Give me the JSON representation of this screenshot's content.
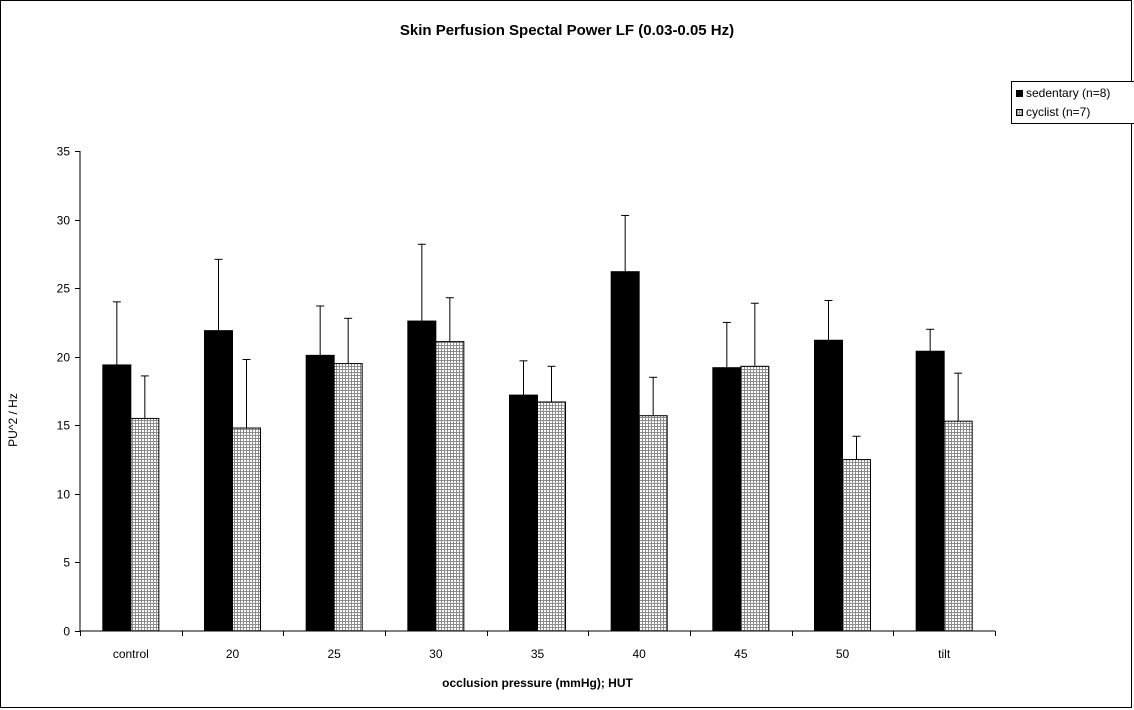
{
  "chart_data": {
    "type": "bar",
    "title": "Skin Perfusion Spectal Power LF (0.03-0.05 Hz)",
    "xlabel": "occlusion pressure (mmHg); HUT",
    "ylabel": "PU^2 / Hz",
    "ylim": [
      0,
      35
    ],
    "yticks": [
      "0",
      "5",
      "10",
      "15",
      "20",
      "25",
      "30",
      "35"
    ],
    "categories": [
      "control",
      "20",
      "25",
      "30",
      "35",
      "40",
      "45",
      "50",
      "tilt"
    ],
    "series": [
      {
        "name": "sedentary (n=8)",
        "color": "#000000",
        "fill": "solid",
        "values": [
          19.4,
          21.9,
          20.1,
          22.6,
          17.2,
          26.2,
          19.2,
          21.2,
          20.4
        ],
        "errors": [
          4.6,
          5.2,
          3.6,
          5.6,
          2.5,
          4.1,
          3.3,
          2.9,
          1.6
        ]
      },
      {
        "name": "cyclist (n=7)",
        "color": "#ffffff",
        "fill": "grid-pattern",
        "values": [
          15.5,
          14.8,
          19.5,
          21.1,
          16.7,
          15.7,
          19.3,
          12.5,
          15.3
        ],
        "errors": [
          3.1,
          5.0,
          3.3,
          3.2,
          2.6,
          2.8,
          4.6,
          1.7,
          3.5
        ]
      }
    ],
    "legend_position": "top-right",
    "error_bars": "upper",
    "grid": false
  }
}
